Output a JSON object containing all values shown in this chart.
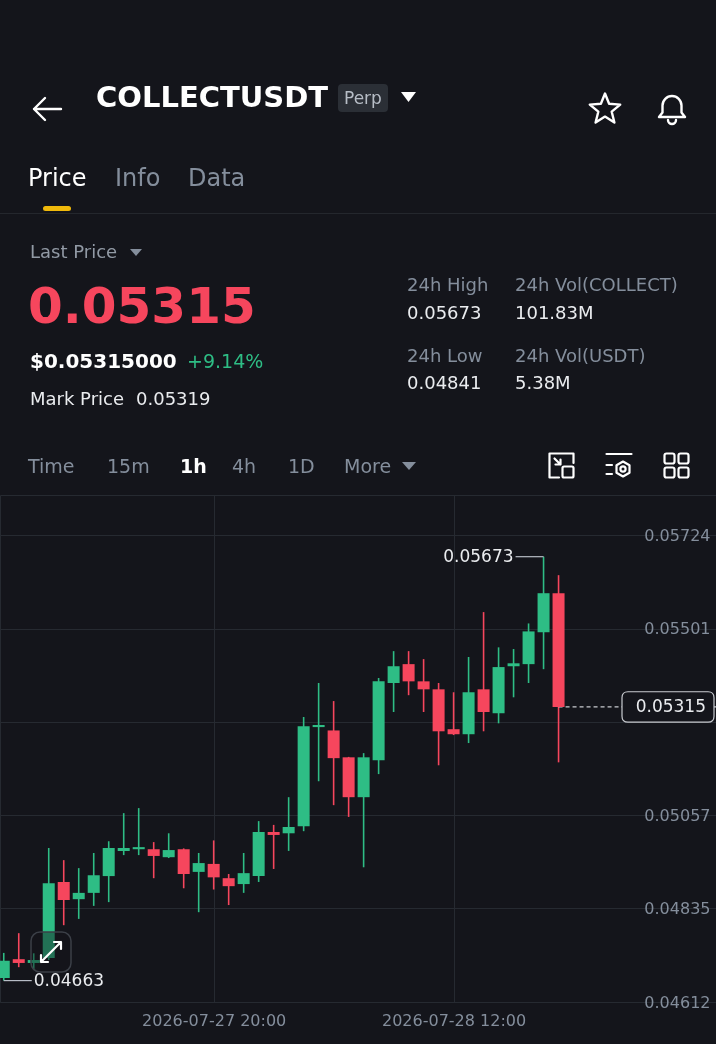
{
  "chart_data": [
    {
      "type": "other",
      "title": "COLLECTUSDT",
      "annotations": [
        "Perp",
        "Price",
        "Info",
        "Data",
        "Last Price",
        "0.05315",
        "$0.05315000",
        "+9.14%",
        "Mark Price",
        "0.05319",
        "24h High",
        "0.05673",
        "24h Vol(COLLECT)",
        "101.83M",
        "24h Low",
        "0.04841",
        "24h Vol(USDT)",
        "5.38M",
        "Time",
        "15m",
        "1h",
        "4h",
        "1D",
        "More"
      ]
    },
    {
      "type": "candlestick",
      "x": [
        "2026-07-27T06:00",
        "2026-07-27T07:00",
        "2026-07-27T08:00",
        "2026-07-27T09:00",
        "2026-07-27T10:00",
        "2026-07-27T11:00",
        "2026-07-27T12:00",
        "2026-07-27T13:00",
        "2026-07-27T14:00",
        "2026-07-27T15:00",
        "2026-07-27T16:00",
        "2026-07-27T17:00",
        "2026-07-27T18:00",
        "2026-07-27T19:00",
        "2026-07-27T20:00",
        "2026-07-27T21:00",
        "2026-07-27T22:00",
        "2026-07-27T23:00",
        "2026-07-28T00:00",
        "2026-07-28T01:00",
        "2026-07-28T02:00",
        "2026-07-28T03:00",
        "2026-07-28T04:00",
        "2026-07-28T05:00",
        "2026-07-28T06:00",
        "2026-07-28T07:00",
        "2026-07-28T08:00",
        "2026-07-28T09:00",
        "2026-07-28T10:00",
        "2026-07-28T11:00",
        "2026-07-28T12:00",
        "2026-07-28T13:00",
        "2026-07-28T14:00",
        "2026-07-28T15:00",
        "2026-07-28T16:00",
        "2026-07-28T17:00",
        "2026-07-28T18:00",
        "2026-07-28T19:00"
      ],
      "ohlc": [
        [
          0.04669,
          0.04729,
          0.04663,
          0.0471
        ],
        [
          0.04714,
          0.04776,
          0.04695,
          0.04705
        ],
        [
          0.04705,
          0.04728,
          0.0469,
          0.04712
        ],
        [
          0.04717,
          0.04979,
          0.04712,
          0.04895
        ],
        [
          0.04898,
          0.0495,
          0.04795,
          0.04855
        ],
        [
          0.04857,
          0.04931,
          0.0481,
          0.04872
        ],
        [
          0.04872,
          0.04967,
          0.04841,
          0.04914
        ],
        [
          0.04912,
          0.04995,
          0.0485,
          0.04979
        ],
        [
          0.04972,
          0.05062,
          0.04962,
          0.04979
        ],
        [
          0.04976,
          0.05074,
          0.04962,
          0.04981
        ],
        [
          0.04976,
          0.04993,
          0.04907,
          0.0496
        ],
        [
          0.04957,
          0.05014,
          0.04955,
          0.04974
        ],
        [
          0.04976,
          0.04978,
          0.04883,
          0.04917
        ],
        [
          0.04922,
          0.04967,
          0.04826,
          0.04943
        ],
        [
          0.04941,
          0.04997,
          0.0488,
          0.04909
        ],
        [
          0.04907,
          0.04917,
          0.04843,
          0.04888
        ],
        [
          0.04893,
          0.04967,
          0.04872,
          0.04919
        ],
        [
          0.04912,
          0.05043,
          0.04898,
          0.05017
        ],
        [
          0.05017,
          0.05034,
          0.04929,
          0.0501
        ],
        [
          0.05014,
          0.051,
          0.04972,
          0.05029
        ],
        [
          0.05031,
          0.05291,
          0.05019,
          0.05269
        ],
        [
          0.05267,
          0.05372,
          0.05138,
          0.05272
        ],
        [
          0.05259,
          0.05329,
          0.05081,
          0.05193
        ],
        [
          0.05195,
          0.05196,
          0.05053,
          0.051
        ],
        [
          0.051,
          0.05205,
          0.04933,
          0.05195
        ],
        [
          0.05188,
          0.05384,
          0.05155,
          0.05376
        ],
        [
          0.05372,
          0.05448,
          0.05303,
          0.05412
        ],
        [
          0.05417,
          0.05448,
          0.05343,
          0.05376
        ],
        [
          0.05376,
          0.05429,
          0.05303,
          0.05357
        ],
        [
          0.05357,
          0.05372,
          0.05176,
          0.05257
        ],
        [
          0.05262,
          0.0535,
          0.05248,
          0.0525
        ],
        [
          0.0525,
          0.05434,
          0.05229,
          0.0535
        ],
        [
          0.05357,
          0.05541,
          0.05257,
          0.05303
        ],
        [
          0.053,
          0.05457,
          0.05276,
          0.0541
        ],
        [
          0.05412,
          0.05453,
          0.05338,
          0.05419
        ],
        [
          0.05417,
          0.05514,
          0.05372,
          0.05495
        ],
        [
          0.05493,
          0.05673,
          0.05405,
          0.05586
        ],
        [
          0.05586,
          0.05629,
          0.05183,
          0.05315
        ]
      ],
      "colors": [
        "#2ebd85",
        "#f6465d",
        "#2ebd85",
        "#2ebd85",
        "#f6465d",
        "#2ebd85",
        "#2ebd85",
        "#2ebd85",
        "#2ebd85",
        "#2ebd85",
        "#f6465d",
        "#2ebd85",
        "#f6465d",
        "#2ebd85",
        "#f6465d",
        "#f6465d",
        "#2ebd85",
        "#2ebd85",
        "#f6465d",
        "#2ebd85",
        "#2ebd85",
        "#2ebd85",
        "#f6465d",
        "#f6465d",
        "#2ebd85",
        "#2ebd85",
        "#2ebd85",
        "#f6465d",
        "#f6465d",
        "#f6465d",
        "#f6465d",
        "#2ebd85",
        "#f6465d",
        "#2ebd85",
        "#2ebd85",
        "#2ebd85",
        "#2ebd85",
        "#f6465d"
      ],
      "xlim": [
        "2026-07-27T05:45",
        "2026-07-29T05:30"
      ],
      "ylim": [
        0.04612,
        0.0582
      ],
      "xticks": [
        {
          "value": "2026-07-27T20:00",
          "label": "2026-07-27 20:00"
        },
        {
          "value": "2026-07-28T12:00",
          "label": "2026-07-28 12:00"
        }
      ],
      "yticks": [
        0.04612,
        0.04835,
        0.05057,
        {
          "value": 0.05279,
          "label": null
        },
        0.05501,
        0.05724
      ],
      "grid": true,
      "ref_lines": [
        {
          "axis": "y",
          "value": 0.05315,
          "label": "0.05315",
          "color": "#c9ccd1",
          "line_style": "dashed"
        }
      ],
      "annotations": [
        {
          "text": "0.05673",
          "x": "2026-07-28T18:00",
          "y": 0.05673
        },
        {
          "text": "0.04663",
          "x": "2026-07-27T06:00",
          "y": 0.04663
        }
      ]
    }
  ]
}
